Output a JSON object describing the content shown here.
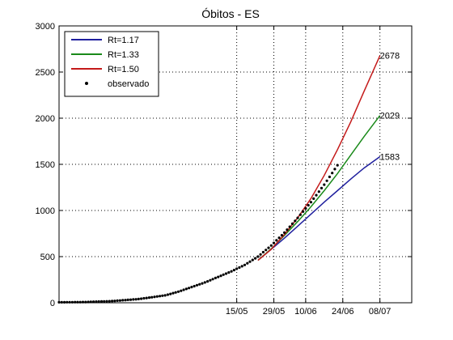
{
  "chart_data": {
    "type": "line",
    "title": "Óbitos - ES",
    "xlabel": "",
    "ylabel": "",
    "ylim": [
      0,
      3000
    ],
    "yticks": [
      0,
      500,
      1000,
      1500,
      2000,
      2500,
      3000
    ],
    "xticks": [
      {
        "day": 67,
        "label": "15/05"
      },
      {
        "day": 81,
        "label": "29/05"
      },
      {
        "day": 93,
        "label": "10/06"
      },
      {
        "day": 107,
        "label": "24/06"
      },
      {
        "day": 121,
        "label": "08/07"
      }
    ],
    "xlim": [
      0,
      133
    ],
    "grid": true,
    "legend_position": "top-left",
    "series": [
      {
        "name": "Rt=1.17",
        "color": "#1f1f9e",
        "x": [
          75,
          80,
          85,
          90,
          95,
          100,
          105,
          110,
          115,
          121
        ],
        "y": [
          460,
          580,
          700,
          830,
          960,
          1090,
          1215,
          1340,
          1460,
          1583
        ],
        "end_label": "1583"
      },
      {
        "name": "Rt=1.33",
        "color": "#1a8a1a",
        "x": [
          75,
          80,
          85,
          90,
          95,
          100,
          105,
          110,
          115,
          121
        ],
        "y": [
          460,
          585,
          730,
          880,
          1040,
          1215,
          1400,
          1600,
          1800,
          2029
        ],
        "end_label": "2029"
      },
      {
        "name": "Rt=1.50",
        "color": "#c41a1a",
        "x": [
          75,
          80,
          85,
          90,
          95,
          100,
          105,
          110,
          115,
          121
        ],
        "y": [
          460,
          580,
          740,
          920,
          1130,
          1380,
          1660,
          1960,
          2290,
          2678
        ],
        "end_label": "2678"
      }
    ],
    "observed": {
      "name": "observado",
      "color": "#000000",
      "x": [
        0,
        10,
        20,
        30,
        40,
        45,
        50,
        55,
        60,
        65,
        70,
        75,
        80,
        85,
        90,
        95,
        100,
        105
      ],
      "y": [
        5,
        8,
        18,
        40,
        80,
        120,
        170,
        220,
        280,
        340,
        410,
        500,
        620,
        760,
        920,
        1090,
        1280,
        1490
      ]
    }
  }
}
